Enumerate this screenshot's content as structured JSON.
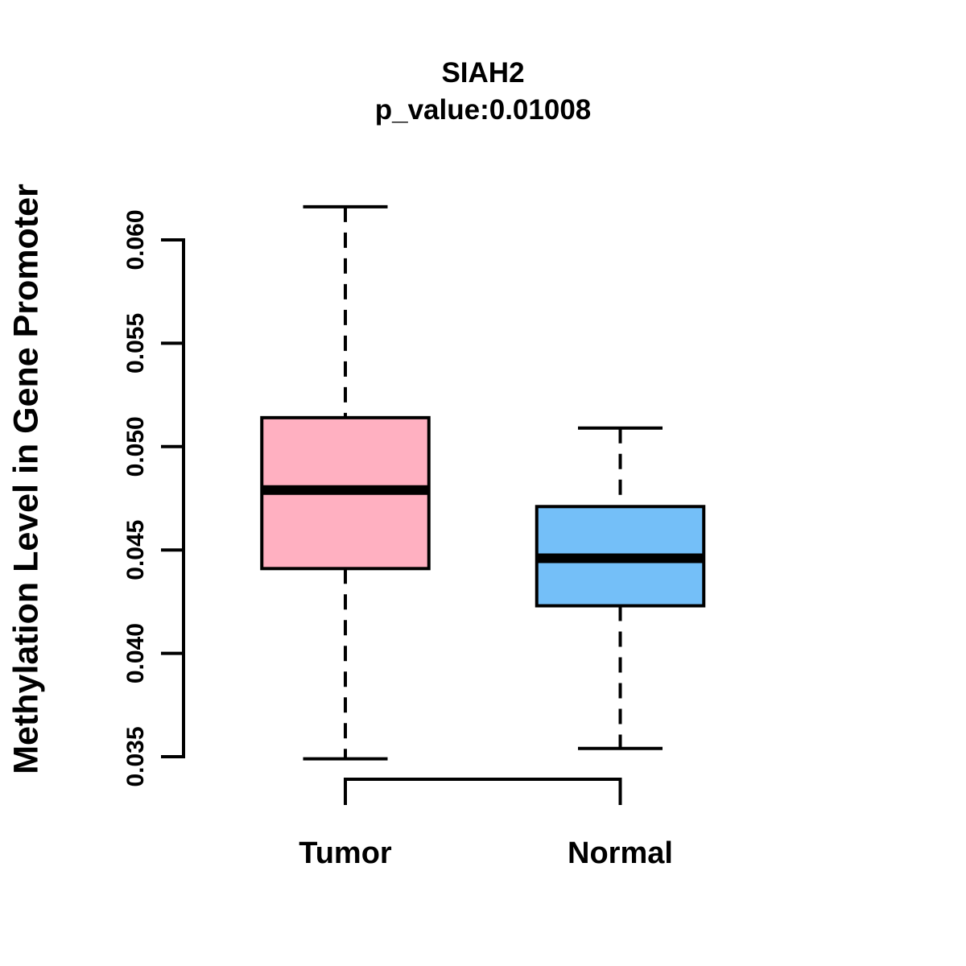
{
  "chart_data": {
    "type": "boxplot",
    "title": "SIAH2",
    "subtitle": "p_value:0.01008",
    "ylabel": "Methylation Level in Gene Promoter",
    "xlabel": "",
    "ylim": [
      0.035,
      0.06
    ],
    "yticks": [
      0.035,
      0.04,
      0.045,
      0.05,
      0.055,
      0.06
    ],
    "ytick_labels": [
      "0.035",
      "0.040",
      "0.045",
      "0.050",
      "0.055",
      "0.060"
    ],
    "categories": [
      "Tumor",
      "Normal"
    ],
    "series": [
      {
        "name": "Tumor",
        "fill": "#FFB0C1",
        "whisker_low": 0.0349,
        "q1": 0.0441,
        "median": 0.0479,
        "q3": 0.0514,
        "whisker_high": 0.0616
      },
      {
        "name": "Normal",
        "fill": "#74BFF8",
        "whisker_low": 0.0354,
        "q1": 0.0423,
        "median": 0.0446,
        "q3": 0.0471,
        "whisker_high": 0.0509
      }
    ],
    "grid": false,
    "legend": "none",
    "stroke_color": "#000000",
    "background_color": "#FFFFFF"
  }
}
